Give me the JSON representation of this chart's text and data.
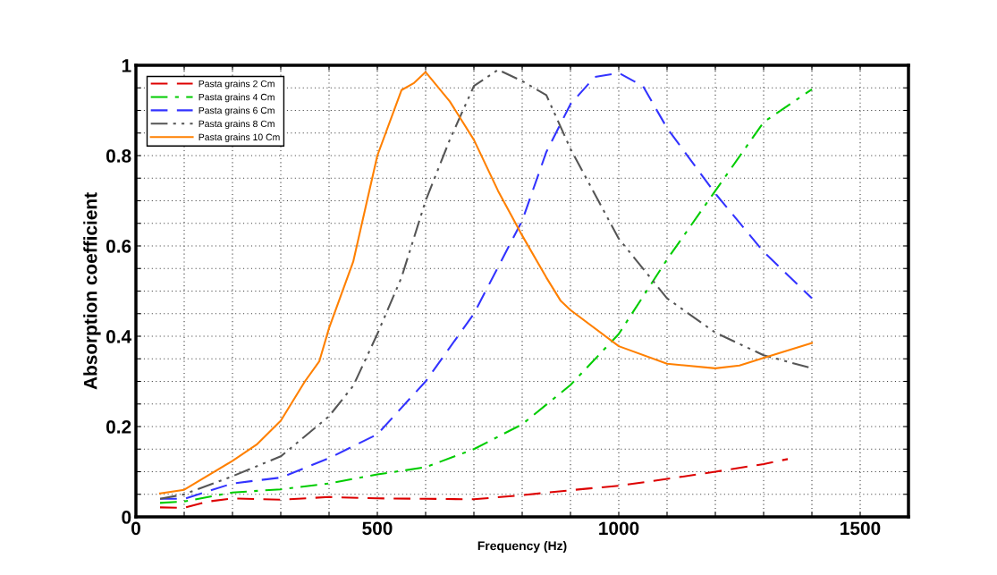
{
  "chart_data": {
    "type": "line",
    "xlabel": "Frequency (Hz)",
    "ylabel": "Absorption coefficient",
    "xlim": [
      0,
      1600
    ],
    "ylim": [
      0,
      1
    ],
    "xticks": [
      0,
      {
        "value": 100,
        "label": null
      },
      {
        "value": 200,
        "label": null
      },
      {
        "value": 300,
        "label": null
      },
      {
        "value": 400,
        "label": null
      },
      500,
      {
        "value": 600,
        "label": null
      },
      {
        "value": 700,
        "label": null
      },
      {
        "value": 800,
        "label": null
      },
      {
        "value": 900,
        "label": null
      },
      1000,
      {
        "value": 1100,
        "label": null
      },
      {
        "value": 1200,
        "label": null
      },
      {
        "value": 1300,
        "label": null
      },
      {
        "value": 1400,
        "label": null
      },
      1500
    ],
    "yticks": [
      0,
      {
        "value": 0.05,
        "label": null
      },
      {
        "value": 0.1,
        "label": null
      },
      {
        "value": 0.15,
        "label": null
      },
      0.2,
      {
        "value": 0.25,
        "label": null
      },
      {
        "value": 0.3,
        "label": null
      },
      {
        "value": 0.35,
        "label": null
      },
      0.4,
      {
        "value": 0.45,
        "label": null
      },
      {
        "value": 0.5,
        "label": null
      },
      {
        "value": 0.55,
        "label": null
      },
      0.6,
      {
        "value": 0.65,
        "label": null
      },
      {
        "value": 0.7,
        "label": null
      },
      {
        "value": 0.75,
        "label": null
      },
      0.8,
      {
        "value": 0.85,
        "label": null
      },
      {
        "value": 0.9,
        "label": null
      },
      {
        "value": 0.95,
        "label": null
      },
      1
    ],
    "grid": true,
    "legend": "top left",
    "marker": "none",
    "series": [
      {
        "name": "Pasta grains 2 Cm",
        "color": "#dd0000",
        "line_style": "dashed",
        "x": [
          50,
          100,
          150,
          200,
          300,
          400,
          500,
          600,
          700,
          800,
          900,
          1000,
          1100,
          1200,
          1300,
          1350
        ],
        "values": [
          0.021,
          0.02,
          0.034,
          0.041,
          0.038,
          0.044,
          0.041,
          0.04,
          0.039,
          0.048,
          0.059,
          0.069,
          0.084,
          0.1,
          0.117,
          0.128
        ]
      },
      {
        "name": "Pasta grains 4 Cm",
        "color": "#00cc00",
        "line_style": "dashdot",
        "x": [
          50,
          100,
          200,
          300,
          400,
          500,
          600,
          700,
          800,
          900,
          1000,
          1100,
          1200,
          1300,
          1400
        ],
        "values": [
          0.031,
          0.034,
          0.054,
          0.061,
          0.074,
          0.094,
          0.11,
          0.15,
          0.205,
          0.292,
          0.405,
          0.57,
          0.722,
          0.874,
          0.947
        ]
      },
      {
        "name": "Pasta grains 6 Cm",
        "color": "#3333ff",
        "line_style": "dashed",
        "x": [
          50,
          100,
          200,
          300,
          400,
          500,
          600,
          700,
          800,
          850,
          900,
          950,
          1000,
          1050,
          1100,
          1200,
          1300,
          1400
        ],
        "values": [
          0.04,
          0.04,
          0.074,
          0.087,
          0.13,
          0.183,
          0.3,
          0.45,
          0.656,
          0.808,
          0.914,
          0.974,
          0.983,
          0.954,
          0.861,
          0.716,
          0.587,
          0.484
        ]
      },
      {
        "name": "Pasta grains 8 Cm",
        "color": "#555555",
        "line_style": "dashdotdot",
        "x": [
          50,
          100,
          200,
          300,
          400,
          450,
          500,
          550,
          600,
          650,
          700,
          750,
          800,
          850,
          900,
          1000,
          1100,
          1200,
          1300,
          1400
        ],
        "values": [
          0.04,
          0.05,
          0.09,
          0.134,
          0.223,
          0.29,
          0.405,
          0.53,
          0.7,
          0.835,
          0.954,
          0.99,
          0.965,
          0.934,
          0.815,
          0.616,
          0.484,
          0.408,
          0.358,
          0.329
        ]
      },
      {
        "name": "Pasta grains 10 Cm",
        "color": "#ff8000",
        "line_style": "solid",
        "x": [
          50,
          100,
          200,
          250,
          300,
          350,
          380,
          400,
          450,
          500,
          550,
          575,
          600,
          650,
          700,
          750,
          800,
          850,
          880,
          900,
          1000,
          1100,
          1200,
          1250,
          1300,
          1400
        ],
        "values": [
          0.052,
          0.06,
          0.124,
          0.16,
          0.213,
          0.3,
          0.345,
          0.418,
          0.565,
          0.8,
          0.945,
          0.96,
          0.985,
          0.92,
          0.835,
          0.722,
          0.623,
          0.53,
          0.478,
          0.458,
          0.378,
          0.339,
          0.329,
          0.335,
          0.352,
          0.385
        ]
      }
    ]
  }
}
